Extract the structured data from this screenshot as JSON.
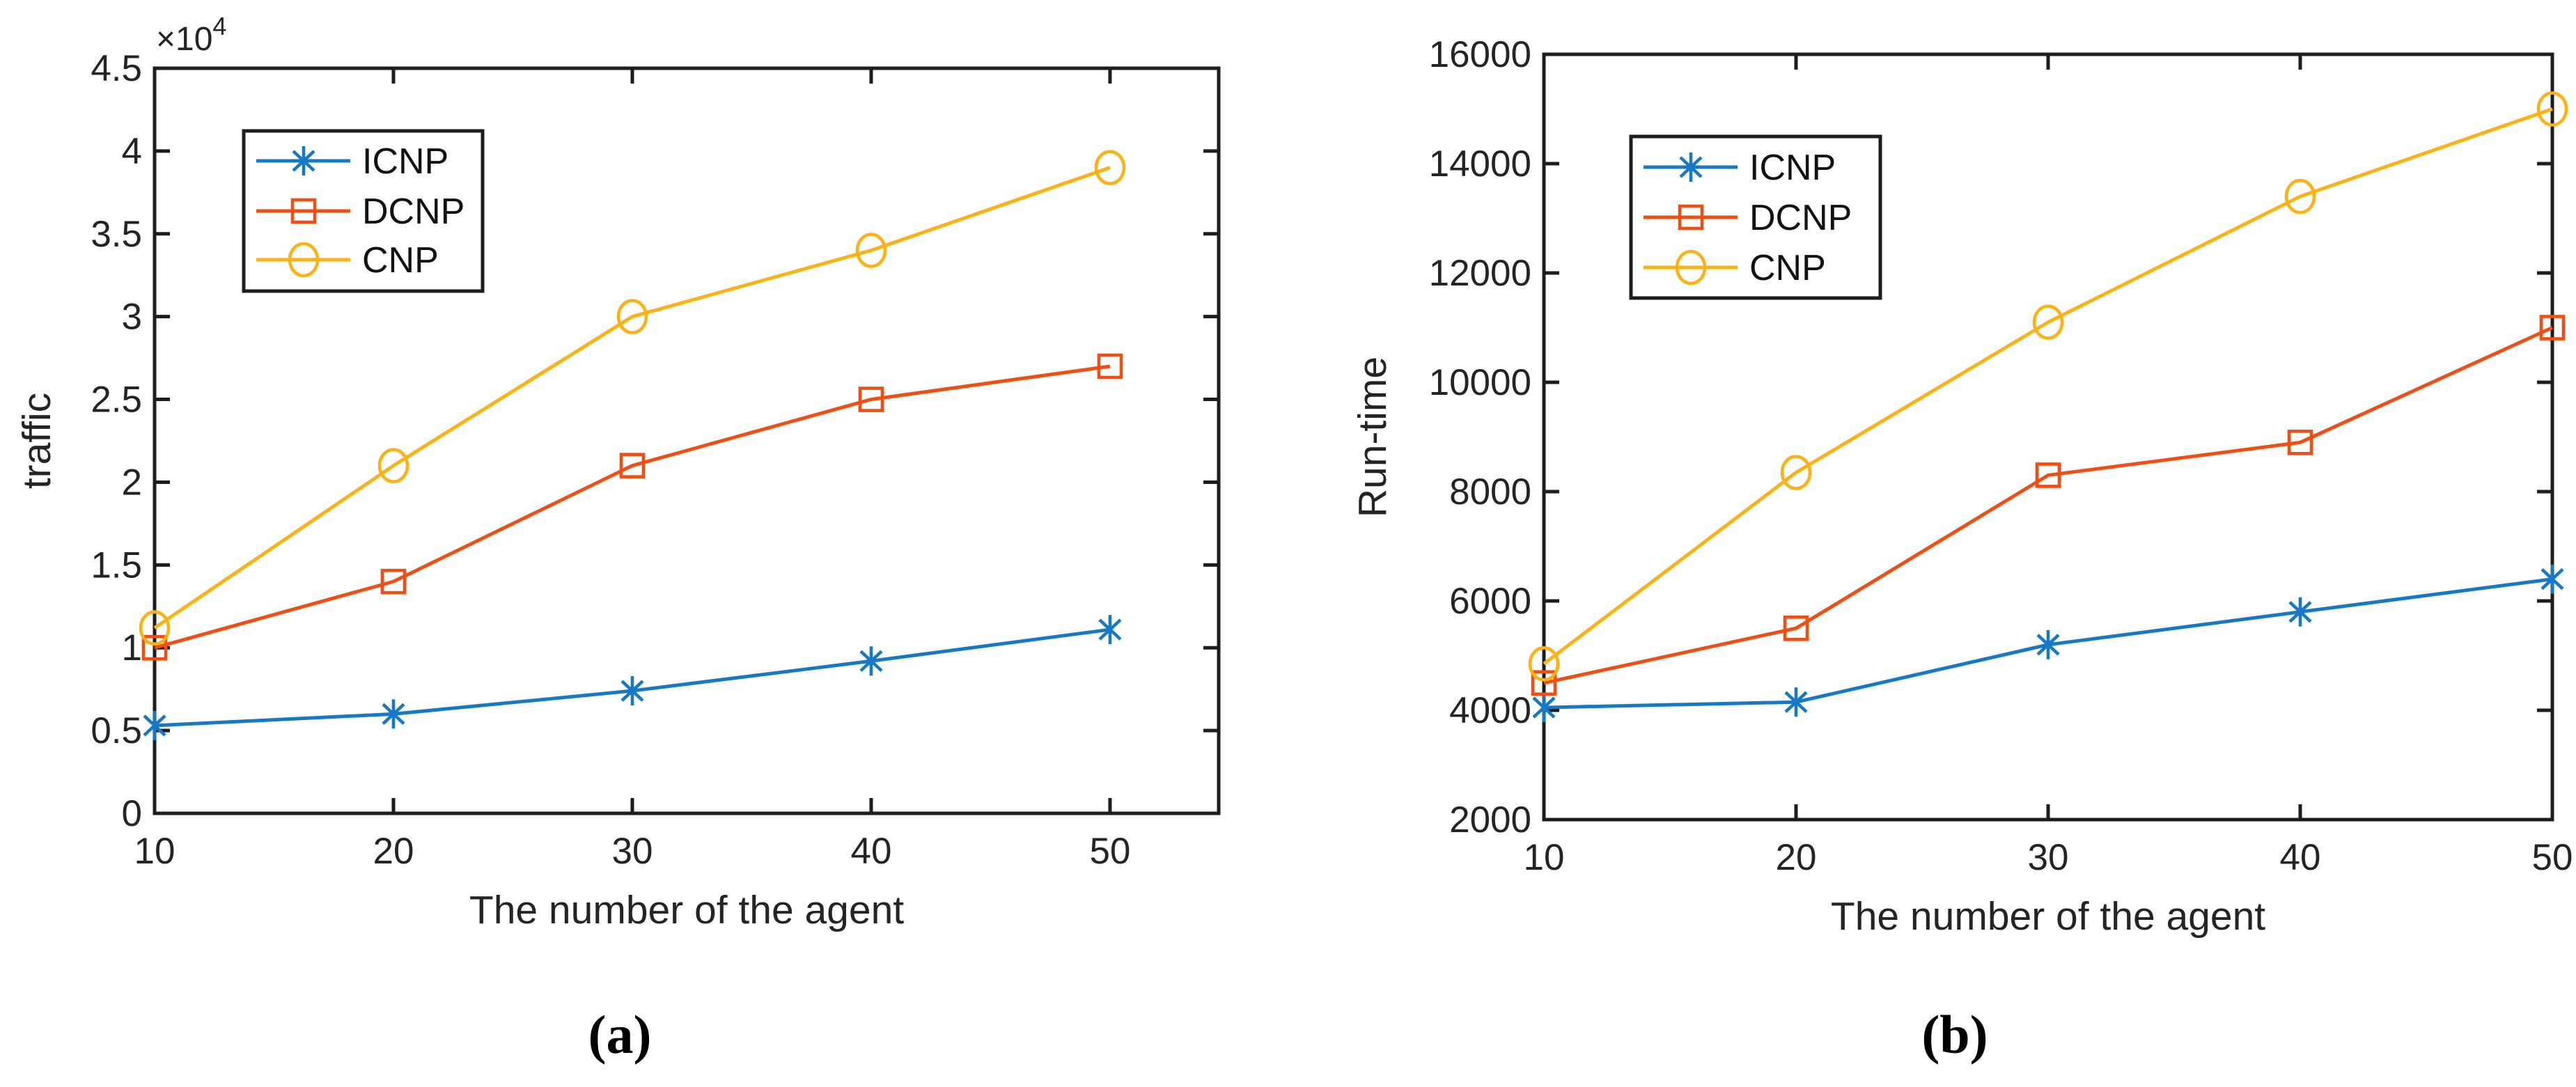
{
  "figure": {
    "captions": {
      "a": "(a)",
      "b": "(b)"
    },
    "colors": {
      "icnp": "#1778c4",
      "dcnp": "#ef4e15",
      "cnp": "#fcb216",
      "axis": "#1d1d1d",
      "text": "#242424"
    }
  },
  "chart_data": [
    {
      "id": "a",
      "type": "line",
      "title": "",
      "xlabel": "The number of the agent",
      "ylabel": "traffic",
      "y_offset": {
        "base": "×10",
        "exponent": "4"
      },
      "x": [
        10,
        20,
        30,
        40,
        50
      ],
      "xtick_labels": [
        "10",
        "20",
        "30",
        "40",
        "50"
      ],
      "xlim": [
        10,
        54.55
      ],
      "ylim": [
        0,
        45000
      ],
      "ytick_step": 5000,
      "ytick_labels": [
        "0",
        "0.5",
        "1",
        "1.5",
        "2",
        "2.5",
        "3",
        "3.5",
        "4",
        "4.5"
      ],
      "grid": false,
      "legend_position": "upper-left-inside",
      "legend": [
        "ICNP",
        "DCNP",
        "CNP"
      ],
      "series": [
        {
          "name": "ICNP",
          "marker": "asterisk",
          "color_key": "icnp",
          "values": [
            5300,
            6000,
            7400,
            9200,
            11100
          ]
        },
        {
          "name": "DCNP",
          "marker": "square",
          "color_key": "dcnp",
          "values": [
            10000,
            14000,
            21000,
            25000,
            27000
          ]
        },
        {
          "name": "CNP",
          "marker": "circle",
          "color_key": "cnp",
          "values": [
            11200,
            21000,
            30000,
            34000,
            39000
          ]
        }
      ]
    },
    {
      "id": "b",
      "type": "line",
      "title": "",
      "xlabel": "The number of the agent",
      "ylabel": "Run-time",
      "x": [
        10,
        20,
        30,
        40,
        50
      ],
      "xtick_labels": [
        "10",
        "20",
        "30",
        "40",
        "50"
      ],
      "xlim": [
        10,
        50
      ],
      "ylim": [
        2000,
        16000
      ],
      "ytick_step": 2000,
      "ytick_labels": [
        "2000",
        "4000",
        "6000",
        "8000",
        "10000",
        "12000",
        "14000",
        "16000"
      ],
      "grid": false,
      "legend_position": "upper-left-inside",
      "legend": [
        "ICNP",
        "DCNP",
        "CNP"
      ],
      "series": [
        {
          "name": "ICNP",
          "marker": "asterisk",
          "color_key": "icnp",
          "values": [
            4050,
            4150,
            5200,
            5800,
            6400
          ]
        },
        {
          "name": "DCNP",
          "marker": "square",
          "color_key": "dcnp",
          "values": [
            4500,
            5500,
            8300,
            8900,
            11000
          ]
        },
        {
          "name": "CNP",
          "marker": "circle",
          "color_key": "cnp",
          "values": [
            4850,
            8350,
            11100,
            13400,
            15000
          ]
        }
      ]
    }
  ]
}
